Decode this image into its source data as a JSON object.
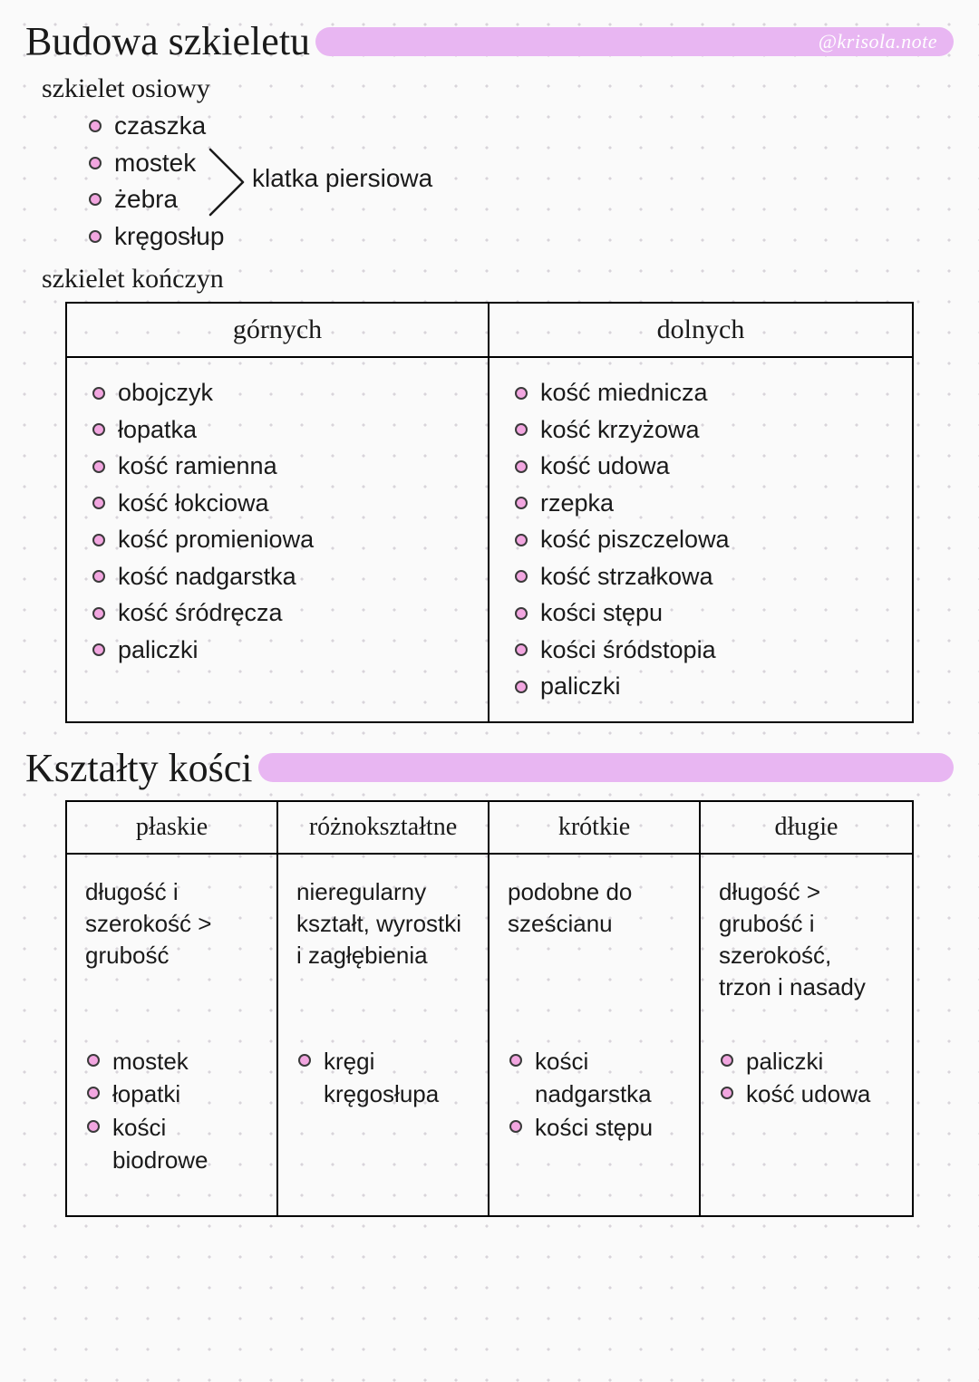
{
  "colors": {
    "highlight": "#e8b6f2",
    "bullet_fill": "#f2a6e0",
    "bullet_border": "#3a3a3a",
    "text": "#1a1a1a",
    "dot_grid": "#d8d4da",
    "background": "#fafafa",
    "watermark_text": "#ffffff",
    "table_border": "#000000"
  },
  "typography": {
    "heading_font": "Georgia serif",
    "body_font": "Comic Sans MS handwriting",
    "heading_size_pt": 33,
    "subheading_size_pt": 22,
    "body_size_pt": 20
  },
  "watermark": "@krisola.note",
  "section1": {
    "title": "Budowa szkieletu",
    "axial": {
      "heading": "szkielet osiowy",
      "items": [
        "czaszka",
        "mostek",
        "żebra",
        "kręgosłup"
      ],
      "brace_label": "klatka piersiowa",
      "brace_covers_indices": [
        1,
        2
      ]
    },
    "limbs": {
      "heading": "szkielet kończyn",
      "columns": [
        {
          "header": "górnych",
          "items": [
            "obojczyk",
            "łopatka",
            "kość ramienna",
            "kość łokciowa",
            "kość promieniowa",
            "kość nadgarstka",
            "kość śródręcza",
            "paliczki"
          ]
        },
        {
          "header": "dolnych",
          "items": [
            "kość miednicza",
            "kość krzyżowa",
            "kość udowa",
            "rzepka",
            "kość piszczelowa",
            "kość strzałkowa",
            "kości stępu",
            "kości śródstopia",
            "paliczki"
          ]
        }
      ]
    }
  },
  "section2": {
    "title": "Kształty kości",
    "columns": [
      {
        "header": "płaskie",
        "description": "długość i szerokość > grubość",
        "examples": [
          "mostek",
          "łopatki",
          "kości biodrowe"
        ]
      },
      {
        "header": "różnokształtne",
        "description": "nieregularny kształt, wyrostki i zagłębienia",
        "examples": [
          "kręgi kręgosłupa"
        ]
      },
      {
        "header": "krótkie",
        "description": "podobne do sześcianu",
        "examples": [
          "kości nadgarstka",
          "kości stępu"
        ]
      },
      {
        "header": "długie",
        "description": "długość > grubość i szerokość, trzon i nasady",
        "examples": [
          "paliczki",
          "kość udowa"
        ]
      }
    ]
  }
}
